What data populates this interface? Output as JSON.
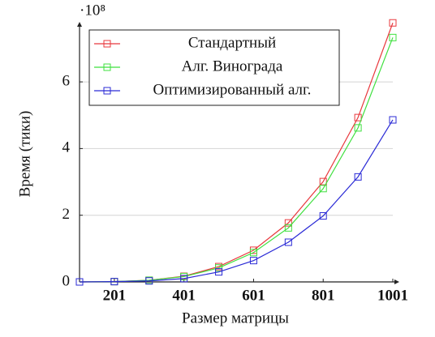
{
  "chart_data": {
    "type": "line",
    "x_label": "Размер матрицы",
    "y_label": "Время (тики)",
    "y_scale_label": "·10⁸",
    "x": [
      101,
      201,
      301,
      401,
      501,
      601,
      701,
      801,
      901,
      1001
    ],
    "series": [
      {
        "name": "Стандартный",
        "color": "#e8383d",
        "values": [
          0,
          0.01,
          0.05,
          0.17,
          0.46,
          0.95,
          1.77,
          3.01,
          4.93,
          7.77
        ]
      },
      {
        "name": "Алг. Винограда",
        "color": "#3fe03f",
        "values": [
          0,
          0.01,
          0.05,
          0.16,
          0.42,
          0.88,
          1.62,
          2.8,
          4.62,
          7.33
        ]
      },
      {
        "name": "Оптимизированный алг.",
        "color": "#2b2bd6",
        "values": [
          0,
          0.01,
          0.03,
          0.1,
          0.3,
          0.64,
          1.19,
          1.98,
          3.15,
          4.86
        ]
      }
    ],
    "xlim": [
      101,
      1001
    ],
    "xticks": [
      201,
      401,
      601,
      801,
      1001
    ],
    "ylim": [
      0,
      7.8
    ],
    "yticks": [
      0,
      2,
      4,
      6
    ],
    "grid": true,
    "legend": "top-left"
  }
}
